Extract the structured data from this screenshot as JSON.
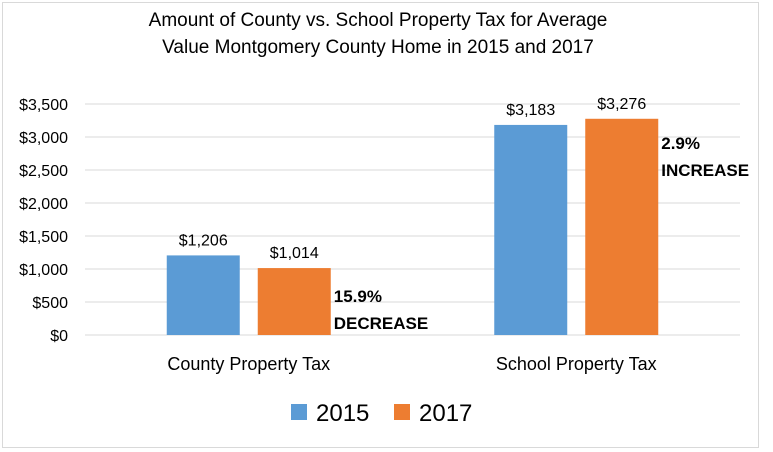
{
  "chart_data": {
    "type": "bar",
    "title_lines": [
      "Amount of County vs. School Property Tax for Average",
      "Value Montgomery County Home in 2015 and 2017"
    ],
    "categories": [
      "County Property Tax",
      "School Property Tax"
    ],
    "series": [
      {
        "name": "2015",
        "color": "#5b9bd5",
        "values": [
          1206,
          3183
        ]
      },
      {
        "name": "2017",
        "color": "#ed7d31",
        "values": [
          1014,
          3276
        ]
      }
    ],
    "data_labels": [
      [
        "$1,206",
        "$3,183"
      ],
      [
        "$1,014",
        "$3,276"
      ]
    ],
    "y_ticks": [
      "$0",
      "$500",
      "$1,000",
      "$1,500",
      "$2,000",
      "$2,500",
      "$3,000",
      "$3,500"
    ],
    "ylim": [
      0,
      3500
    ],
    "y_step": 500,
    "annotations": [
      {
        "category": 0,
        "lines": [
          "15.9%",
          "DECREASE"
        ]
      },
      {
        "category": 1,
        "lines": [
          "2.9%",
          "INCREASE"
        ]
      }
    ],
    "legend_position": "bottom",
    "grid": true
  }
}
